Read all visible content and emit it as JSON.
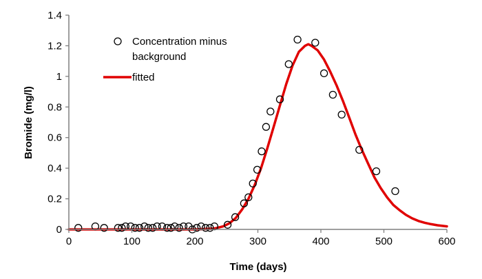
{
  "chart_data": {
    "type": "scatter",
    "xlabel": "Time (days)",
    "ylabel": "Bromide (mg/l)",
    "xlim": [
      0,
      600
    ],
    "ylim": [
      0,
      1.4
    ],
    "xticks": [
      0,
      100,
      200,
      300,
      400,
      500,
      600
    ],
    "yticks": [
      0,
      0.2,
      0.4,
      0.6,
      0.8,
      1,
      1.2,
      1.4
    ],
    "xtick_labels": [
      "0",
      "100",
      "200",
      "300",
      "400",
      "500",
      "600"
    ],
    "ytick_labels": [
      "0",
      "0.2",
      "0.4",
      "0.6",
      "0.8",
      "1",
      "1.2",
      "1.4"
    ],
    "grid": false,
    "legend_position": "top-left",
    "series": [
      {
        "name": "Concentration minus background",
        "legend_lines": [
          "Concentration minus",
          "background"
        ],
        "kind": "points",
        "marker": "open-circle",
        "color": "#000000",
        "x": [
          15,
          42,
          56,
          78,
          84,
          90,
          98,
          105,
          112,
          120,
          126,
          133,
          140,
          148,
          156,
          162,
          168,
          175,
          182,
          190,
          196,
          203,
          210,
          217,
          224,
          231,
          252,
          264,
          278,
          285,
          292,
          299,
          306,
          313,
          320,
          335,
          349,
          363,
          391,
          405,
          419,
          433,
          461,
          488,
          518
        ],
        "y": [
          0.01,
          0.02,
          0.01,
          0.01,
          0.01,
          0.02,
          0.02,
          0.01,
          0.01,
          0.02,
          0.01,
          0.01,
          0.02,
          0.02,
          0.01,
          0.01,
          0.02,
          0.01,
          0.02,
          0.02,
          0.0,
          0.01,
          0.02,
          0.01,
          0.01,
          0.02,
          0.03,
          0.08,
          0.17,
          0.21,
          0.3,
          0.39,
          0.51,
          0.67,
          0.77,
          0.85,
          1.08,
          1.24,
          1.22,
          1.02,
          0.88,
          0.75,
          0.52,
          0.38,
          0.25
        ]
      },
      {
        "name": "fitted",
        "kind": "line",
        "color": "#e00000",
        "x": [
          0,
          100,
          200,
          230,
          245,
          255,
          265,
          275,
          285,
          295,
          305,
          315,
          325,
          335,
          345,
          355,
          365,
          375,
          380,
          385,
          395,
          405,
          415,
          425,
          435,
          445,
          455,
          465,
          475,
          485,
          495,
          505,
          515,
          525,
          535,
          545,
          555,
          565,
          575,
          585,
          600
        ],
        "y": [
          0,
          0,
          0,
          0.005,
          0.02,
          0.04,
          0.075,
          0.13,
          0.2,
          0.29,
          0.4,
          0.53,
          0.67,
          0.81,
          0.95,
          1.07,
          1.16,
          1.2,
          1.21,
          1.2,
          1.17,
          1.11,
          1.03,
          0.94,
          0.84,
          0.73,
          0.62,
          0.52,
          0.43,
          0.34,
          0.27,
          0.21,
          0.16,
          0.125,
          0.095,
          0.072,
          0.055,
          0.043,
          0.034,
          0.027,
          0.02
        ]
      }
    ]
  }
}
